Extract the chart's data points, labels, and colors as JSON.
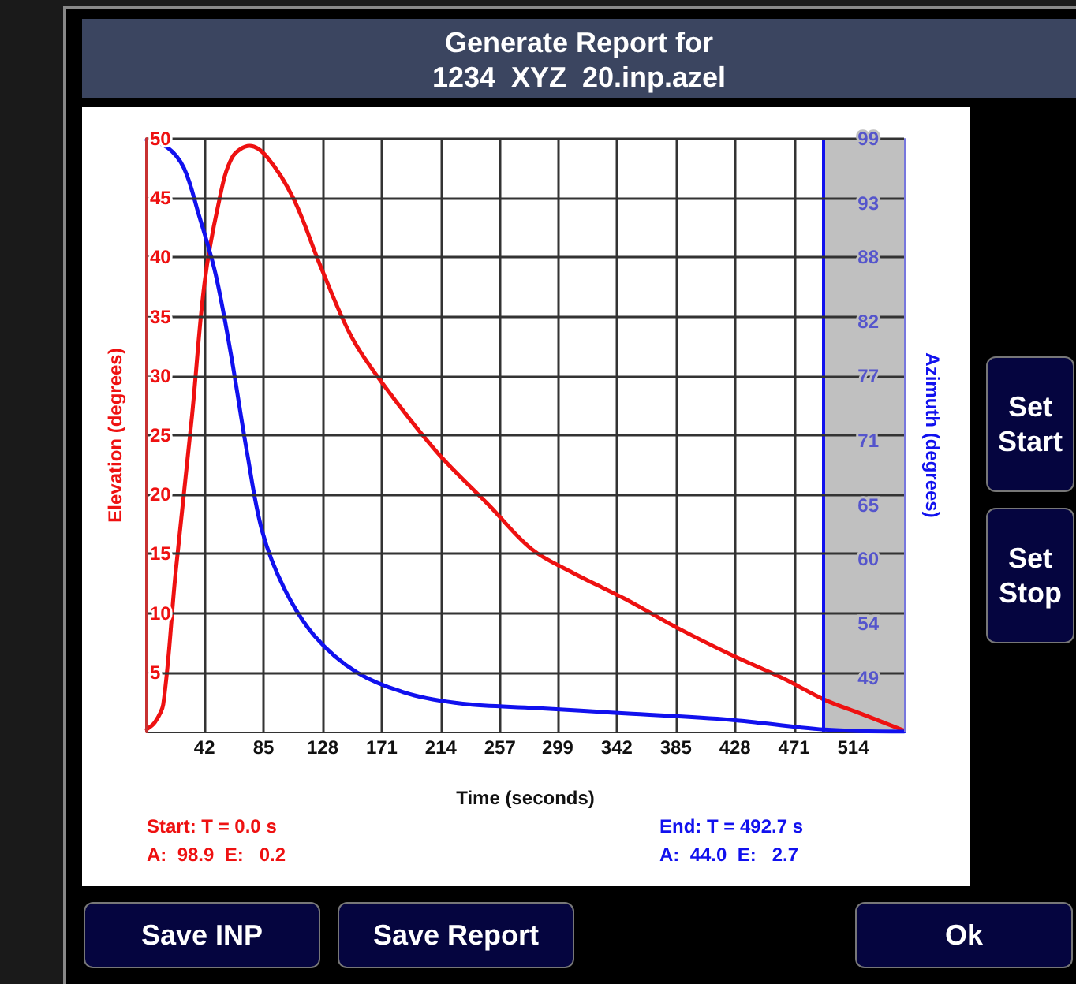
{
  "chart_data": {
    "type": "line",
    "title": "Generate Report for\n1234  XYZ  20.inp.azel",
    "xlabel": "Time (seconds)",
    "ylabel": "Elevation (degrees)",
    "y2label": "Azimuth (degrees)",
    "annotations": [
      "Start: T = 0.0 s",
      "A:  98.9  E:   0.2",
      "End: T = 492.7 s",
      "A:  44.0  E:   2.7",
      "Save INP",
      "Save Report",
      "Ok",
      "Set\nStart",
      "Set\nStop"
    ],
    "series": [
      {
        "color": "#ee1111",
        "x": [
          0,
          6,
          12,
          21,
          33,
          42,
          52,
          62,
          75,
          88,
          107,
          127,
          149,
          172,
          211,
          249,
          280,
          310,
          348,
          387,
          425,
          463,
          493,
          520,
          551
        ],
        "values": [
          0.2,
          0.8,
          2.3,
          13.4,
          26.7,
          37.8,
          44.4,
          48.4,
          49.4,
          48.4,
          44.9,
          39.1,
          33.3,
          29.3,
          23.6,
          19.1,
          15.4,
          13.4,
          11.2,
          8.7,
          6.5,
          4.5,
          2.7,
          1.5,
          0.1
        ]
      },
      {
        "color": "#1111ee",
        "axis": "y2",
        "x": [
          0,
          15,
          27,
          38,
          50,
          61,
          73,
          84,
          100,
          122,
          153,
          191,
          230,
          283,
          348,
          425,
          493,
          551
        ],
        "values": [
          98.9,
          98.2,
          96.3,
          91.9,
          86.5,
          79.2,
          69.9,
          62.6,
          57.3,
          52.9,
          49.5,
          47.5,
          46.6,
          46.2,
          45.7,
          45.1,
          44.2,
          44.0
        ]
      }
    ],
    "xlim": [
      0,
      551
    ],
    "xticks": [
      42,
      85,
      128,
      171,
      214,
      257,
      299,
      342,
      385,
      428,
      471,
      514
    ],
    "ylim": [
      0,
      50
    ],
    "yticks": [
      5,
      10,
      15,
      20,
      25,
      30,
      35,
      40,
      45,
      50
    ],
    "y2lim": [
      44,
      99
    ],
    "y2ticks": [
      49,
      54,
      60,
      65,
      71,
      77,
      82,
      88,
      93,
      99
    ],
    "grid": true,
    "bands": [
      {
        "axis": "x",
        "from": 492.7,
        "to": 551,
        "color": "#c0c0c0"
      }
    ],
    "ref_lines": [
      {
        "axis": "x",
        "value": 492.7,
        "color": "#1111ee"
      }
    ]
  }
}
